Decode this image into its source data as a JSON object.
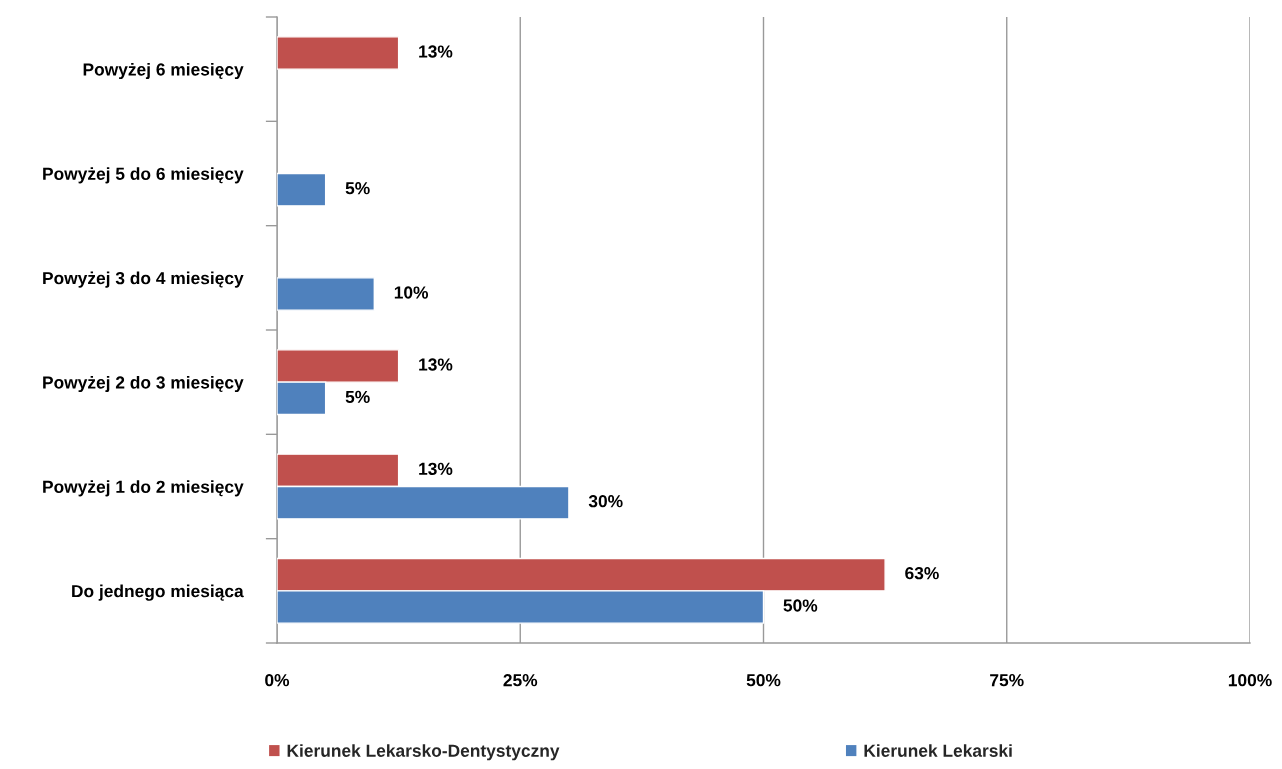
{
  "chart_data": {
    "type": "bar",
    "orientation": "horizontal",
    "categories": [
      "Powyżej 6 miesięcy",
      "Powyżej 5 do 6 miesięcy",
      "Powyżej 3 do 4 miesięcy",
      "Powyżej 2 do 3 miesięcy",
      "Powyżej 1 do 2 miesięcy",
      "Do jednego miesiąca"
    ],
    "series": [
      {
        "name": "Kierunek Lekarsko-Dentystyczny",
        "color": "#c0504d",
        "values": [
          12.5,
          null,
          null,
          12.5,
          12.5,
          62.5
        ],
        "value_labels": [
          "13%",
          null,
          null,
          "13%",
          "13%",
          "63%"
        ]
      },
      {
        "name": "Kierunek Lekarski",
        "color": "#4f81bd",
        "values": [
          null,
          5,
          10,
          5,
          30,
          50
        ],
        "value_labels": [
          null,
          "5%",
          "10%",
          "5%",
          "30%",
          "50%"
        ]
      }
    ],
    "xlim": [
      0,
      100
    ],
    "xticks": [
      {
        "value": 0,
        "label": "0%"
      },
      {
        "value": 25,
        "label": "25%"
      },
      {
        "value": 50,
        "label": "50%"
      },
      {
        "value": 75,
        "label": "75%"
      },
      {
        "value": 100,
        "label": "100%"
      }
    ],
    "grid": "x",
    "legend": "bottom"
  }
}
